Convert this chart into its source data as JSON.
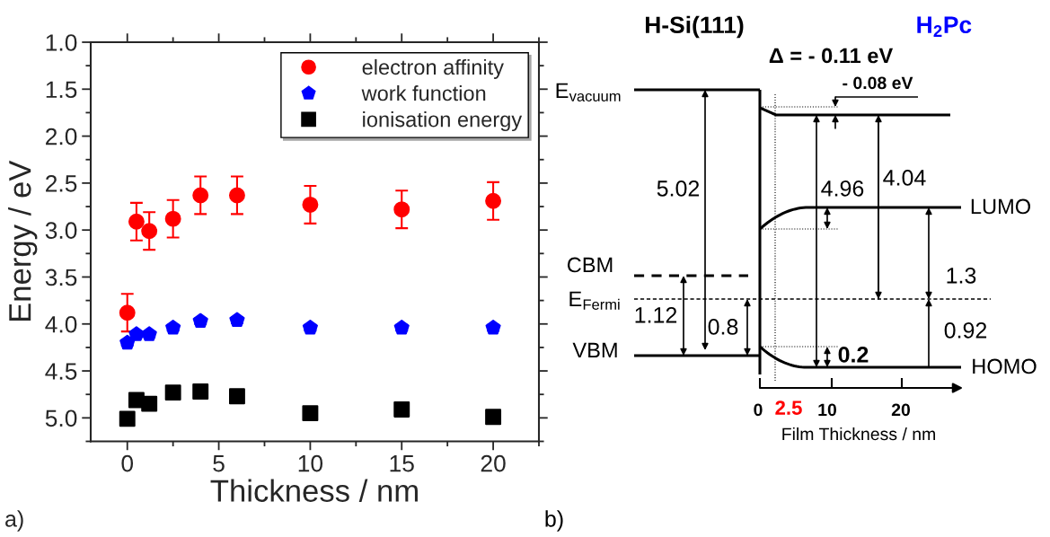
{
  "chart_data": [
    {
      "type": "scatter",
      "xlabel": "Thickness / nm",
      "ylabel": "Energy / eV",
      "x": [
        0,
        0.5,
        1.2,
        2.5,
        4,
        6,
        10,
        15,
        20
      ],
      "series": [
        {
          "name": "electron affinity",
          "color": "#ff0000",
          "marker": "circle",
          "values": [
            3.88,
            2.91,
            3.01,
            2.88,
            2.63,
            2.63,
            2.73,
            2.78,
            2.69
          ],
          "errors": [
            0.2,
            0.2,
            0.2,
            0.2,
            0.2,
            0.2,
            0.2,
            0.2,
            0.2
          ]
        },
        {
          "name": "work function",
          "color": "#0000ff",
          "values": [
            4.2,
            4.11,
            4.11,
            4.04,
            3.97,
            3.96,
            4.04,
            4.04,
            4.04
          ],
          "errors": [
            0.03,
            0.03,
            0.03,
            0.03,
            0.03,
            0.03,
            0.03,
            0.03,
            0.03
          ]
        },
        {
          "name": "ionisation energy",
          "color": "#000000",
          "marker": "square",
          "values": [
            5.01,
            4.81,
            4.85,
            4.73,
            4.72,
            4.77,
            4.95,
            4.91,
            4.99
          ],
          "errors": [
            0.04,
            0.04,
            0.04,
            0.04,
            0.04,
            0.04,
            0.04,
            0.04,
            0.04
          ]
        }
      ],
      "xlim": [
        -2,
        22.5
      ],
      "ylim": [
        5.25,
        1.0
      ],
      "xticks": [
        0,
        5,
        10,
        15,
        20
      ],
      "yticks": [
        {
          "value": 1,
          "label": "1.0"
        },
        1.5,
        {
          "value": 2,
          "label": "2.0"
        },
        2.5,
        {
          "value": 3,
          "label": "3.0"
        },
        3.5,
        {
          "value": 4,
          "label": "4.0"
        },
        4.5,
        {
          "value": 5,
          "label": "5.0"
        }
      ],
      "grid": false,
      "legend": "top right",
      "annotations": [
        "a)"
      ]
    },
    {
      "type": "other",
      "annotations": [
        "H-Si(111)",
        "H$_{2}$Pc",
        "Δ = - 0.11 eV",
        "- 0.08 eV",
        "E$_{vacuum}$",
        "5.02",
        "4.96",
        "4.04",
        "LUMO",
        "CBM",
        "E$_{Fermi}$",
        "1.12",
        "0.8",
        "1.3",
        "0.92",
        "VBM",
        "0.2",
        "HOMO",
        "0",
        "2.5",
        "10",
        "20",
        "Film Thickness / nm",
        "b)"
      ]
    }
  ]
}
